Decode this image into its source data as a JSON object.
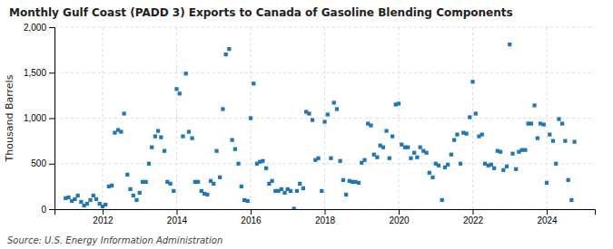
{
  "chart_data": {
    "type": "scatter",
    "title": "Monthly Gulf Coast (PADD 3) Exports to Canada of Gasoline Blending Components",
    "ylabel": "Thousand Barrels",
    "source": "Source: U.S. Energy Information Administration",
    "marker": "square",
    "grid": true,
    "xlim": [
      2010.7,
      2025.3
    ],
    "xticks": [
      2012,
      2014,
      2016,
      2018,
      2020,
      2022,
      2024
    ],
    "ylim": [
      0,
      2000
    ],
    "yticks": [
      0,
      500,
      {
        "value": 1000,
        "label": "1,000"
      },
      {
        "value": 1500,
        "label": "1,500"
      },
      {
        "value": 2000,
        "label": "2,000"
      }
    ],
    "x": [
      2011.0,
      2011.08,
      2011.17,
      2011.25,
      2011.33,
      2011.42,
      2011.5,
      2011.58,
      2011.67,
      2011.75,
      2011.83,
      2011.92,
      2012.0,
      2012.08,
      2012.17,
      2012.25,
      2012.33,
      2012.42,
      2012.5,
      2012.58,
      2012.67,
      2012.75,
      2012.83,
      2012.92,
      2013.0,
      2013.08,
      2013.17,
      2013.25,
      2013.33,
      2013.42,
      2013.5,
      2013.58,
      2013.67,
      2013.75,
      2013.83,
      2013.92,
      2014.0,
      2014.08,
      2014.17,
      2014.25,
      2014.33,
      2014.42,
      2014.5,
      2014.58,
      2014.67,
      2014.75,
      2014.83,
      2014.92,
      2015.0,
      2015.08,
      2015.17,
      2015.25,
      2015.33,
      2015.42,
      2015.5,
      2015.58,
      2015.67,
      2015.75,
      2015.83,
      2015.92,
      2016.0,
      2016.08,
      2016.17,
      2016.25,
      2016.33,
      2016.42,
      2016.5,
      2016.58,
      2016.67,
      2016.75,
      2016.83,
      2016.92,
      2017.0,
      2017.08,
      2017.17,
      2017.25,
      2017.33,
      2017.42,
      2017.5,
      2017.58,
      2017.67,
      2017.75,
      2017.83,
      2017.92,
      2018.0,
      2018.08,
      2018.17,
      2018.25,
      2018.33,
      2018.42,
      2018.5,
      2018.58,
      2018.67,
      2018.75,
      2018.83,
      2018.92,
      2019.0,
      2019.08,
      2019.17,
      2019.25,
      2019.33,
      2019.42,
      2019.5,
      2019.58,
      2019.67,
      2019.75,
      2019.83,
      2019.92,
      2020.0,
      2020.08,
      2020.17,
      2020.25,
      2020.33,
      2020.42,
      2020.5,
      2020.58,
      2020.67,
      2020.75,
      2020.83,
      2020.92,
      2021.0,
      2021.08,
      2021.17,
      2021.25,
      2021.33,
      2021.42,
      2021.5,
      2021.58,
      2021.67,
      2021.75,
      2021.83,
      2021.92,
      2022.0,
      2022.08,
      2022.17,
      2022.25,
      2022.33,
      2022.42,
      2022.5,
      2022.58,
      2022.67,
      2022.75,
      2022.83,
      2022.92,
      2023.0,
      2023.08,
      2023.17,
      2023.25,
      2023.33,
      2023.42,
      2023.5,
      2023.58,
      2023.67,
      2023.75,
      2023.83,
      2023.92,
      2024.0,
      2024.08,
      2024.17,
      2024.25,
      2024.33,
      2024.42,
      2024.5,
      2024.58,
      2024.67,
      2024.75
    ],
    "values": [
      120,
      130,
      90,
      110,
      150,
      80,
      40,
      60,
      100,
      150,
      110,
      60,
      30,
      50,
      250,
      260,
      840,
      870,
      850,
      1050,
      380,
      220,
      150,
      100,
      180,
      300,
      300,
      500,
      680,
      800,
      860,
      790,
      640,
      300,
      280,
      200,
      1320,
      1270,
      800,
      1490,
      850,
      780,
      300,
      300,
      200,
      170,
      160,
      310,
      280,
      640,
      350,
      1100,
      1700,
      1760,
      760,
      660,
      500,
      250,
      100,
      90,
      1000,
      1380,
      500,
      520,
      530,
      450,
      280,
      310,
      200,
      200,
      220,
      180,
      220,
      200,
      5,
      200,
      280,
      230,
      1070,
      1050,
      980,
      540,
      560,
      200,
      960,
      1040,
      560,
      1170,
      1100,
      530,
      320,
      160,
      310,
      300,
      300,
      290,
      510,
      540,
      940,
      920,
      600,
      570,
      700,
      680,
      860,
      560,
      800,
      1150,
      1160,
      710,
      680,
      680,
      560,
      620,
      570,
      680,
      640,
      620,
      400,
      350,
      500,
      480,
      100,
      460,
      490,
      600,
      760,
      820,
      500,
      840,
      830,
      1010,
      1400,
      1050,
      800,
      820,
      500,
      480,
      490,
      450,
      640,
      630,
      430,
      470,
      1810,
      610,
      440,
      630,
      650,
      650,
      940,
      940,
      1140,
      780,
      940,
      930,
      290,
      820,
      750,
      500,
      990,
      940,
      750,
      320,
      100,
      740
    ]
  }
}
